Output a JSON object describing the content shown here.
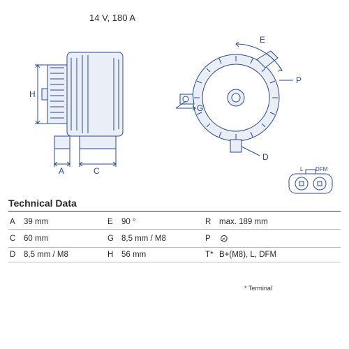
{
  "header": {
    "rating": "14 V, 180 A"
  },
  "heading": "Technical Data",
  "footnote": "* Terminal",
  "colors": {
    "line": "#2a4a8f",
    "fill": "#e9eef7",
    "text": "#2a2a2a",
    "rule": "#bcbcbc"
  },
  "table": {
    "rows": [
      {
        "k1": "A",
        "v1": "39 mm",
        "k2": "E",
        "v2": "90 °",
        "k3": "R",
        "v3": "max. 189 mm"
      },
      {
        "k1": "C",
        "v1": "60 mm",
        "k2": "G",
        "v2": "8,5 mm / M8",
        "k3": "P",
        "v3": "__ROTATION__"
      },
      {
        "k1": "D",
        "v1": "8,5 mm / M8",
        "k2": "H",
        "v2": "56 mm",
        "k3": "T*",
        "v3": "B+(M8), L, DFM"
      }
    ]
  },
  "diagram": {
    "side_view": {
      "labels": {
        "H": "H",
        "A": "A",
        "C": "C"
      },
      "stroke": "#2a4a8f",
      "fill": "#e9eef7"
    },
    "front_view": {
      "labels": {
        "E": "E",
        "P": "P",
        "G": "G",
        "D": "D"
      },
      "stroke": "#2a4a8f",
      "fill": "#e9eef7"
    },
    "connector": {
      "labels": {
        "L": "L",
        "DFM": "DFM"
      },
      "stroke": "#2a4a8f"
    }
  }
}
